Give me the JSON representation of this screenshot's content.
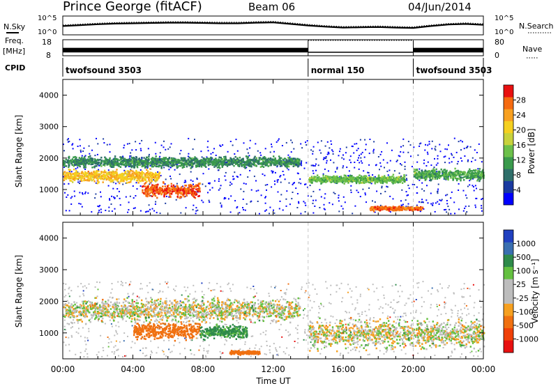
{
  "header": {
    "station": "Prince George (fitACF)",
    "beam": "Beam 06",
    "date": "04/Jun/2014"
  },
  "chart_data": [
    {
      "type": "line",
      "panel": "noise",
      "left_label": "N.Sky",
      "right_label": "N.Search",
      "tick_top": "10^5",
      "tick_bottom": "10^0",
      "log_scale": true,
      "ylim": [
        1,
        100000
      ],
      "x_hours": [
        0,
        1,
        2,
        3,
        4,
        5,
        6,
        7,
        8,
        9,
        10,
        11,
        12,
        13,
        14,
        15,
        16,
        17,
        18,
        19,
        20,
        21,
        22,
        23,
        24
      ],
      "sky_log10": [
        2.4,
        2.7,
        3.0,
        3.2,
        3.3,
        3.4,
        3.5,
        3.5,
        3.4,
        3.3,
        3.3,
        3.5,
        3.6,
        3.1,
        2.6,
        2.2,
        1.9,
        2.0,
        2.1,
        1.9,
        1.8,
        2.4,
        2.9,
        3.1,
        2.8
      ]
    },
    {
      "type": "line",
      "panel": "frequency",
      "left_label_1": "Freq.",
      "left_label_2": "[MHz]",
      "right_label": "Nave",
      "yticks_left": [
        "18",
        "8"
      ],
      "yticks_right": [
        "80",
        "0"
      ],
      "ylim": [
        8,
        18
      ],
      "segments": [
        {
          "start": 0,
          "end": 14,
          "freq_mhz": [
            10.5,
            12.5
          ],
          "nave": 30
        },
        {
          "start": 14,
          "end": 20,
          "freq_mhz": [
            10.5,
            10.5
          ],
          "nave": 80
        },
        {
          "start": 20,
          "end": 24,
          "freq_mhz": [
            10.5,
            12.5
          ],
          "nave": 30
        }
      ]
    },
    {
      "type": "table",
      "panel": "cpid",
      "label": "CPID",
      "modes": [
        {
          "start": 0,
          "end": 14,
          "name": "twofsound 3503"
        },
        {
          "start": 14,
          "end": 20,
          "name": "normal 150"
        },
        {
          "start": 20,
          "end": 24,
          "name": "twofsound 3503"
        }
      ]
    },
    {
      "type": "heatmap",
      "panel": "power",
      "ylabel": "Slant Range [km]",
      "yticks": [
        "1000",
        "2000",
        "3000",
        "4000"
      ],
      "ylim": [
        180,
        4500
      ],
      "colorbar_label": "Power [dB]",
      "colorbar_ticks": [
        "28",
        "24",
        "20",
        "16",
        "12",
        "8",
        "4"
      ],
      "colorbar_range": [
        0,
        32
      ],
      "colors": [
        "#0000ff",
        "#1a3aa0",
        "#2f6f6a",
        "#3a9a4c",
        "#6cc04a",
        "#c8d23c",
        "#f5d020",
        "#f8a020",
        "#f56a10",
        "#e81010"
      ],
      "features": [
        {
          "t0": 0.0,
          "t1": 5.5,
          "r_center": 1450,
          "r_width": 260,
          "db": 22
        },
        {
          "t0": 4.5,
          "t1": 7.8,
          "r_center": 1000,
          "r_width": 300,
          "db": 28
        },
        {
          "t0": 0.0,
          "t1": 13.5,
          "r_center": 1900,
          "r_width": 220,
          "db": 10
        },
        {
          "t0": 14.0,
          "t1": 19.5,
          "r_center": 1350,
          "r_width": 160,
          "db": 14
        },
        {
          "t0": 17.5,
          "t1": 20.5,
          "r_center": 420,
          "r_width": 90,
          "db": 27
        },
        {
          "t0": 20.0,
          "t1": 24.0,
          "r_center": 1500,
          "r_width": 240,
          "db": 12
        }
      ]
    },
    {
      "type": "heatmap",
      "panel": "velocity",
      "ylabel": "Slant Range [km]",
      "yticks": [
        "1000",
        "2000",
        "3000",
        "4000"
      ],
      "ylim": [
        180,
        4500
      ],
      "colorbar_label": "Velocity [m s⁻¹]",
      "colorbar_ticks": [
        "1000",
        "500",
        "100",
        "25",
        "-25",
        "-100",
        "-500",
        "-1000"
      ],
      "colors": [
        "#2040c0",
        "#3a6fb0",
        "#2e8a4a",
        "#64c040",
        "#bdbdbd",
        "#bdbdbd",
        "#f6a020",
        "#f07010",
        "#f04008",
        "#e81010"
      ],
      "features": [
        {
          "t0": 0.0,
          "t1": 13.5,
          "r_center": 1750,
          "r_width": 500,
          "velocity": 0
        },
        {
          "t0": 4.0,
          "t1": 7.8,
          "r_center": 1100,
          "r_width": 350,
          "velocity": -350
        },
        {
          "t0": 7.8,
          "t1": 10.5,
          "r_center": 1050,
          "r_width": 300,
          "velocity": 150
        },
        {
          "t0": 14.0,
          "t1": 24.0,
          "r_center": 1000,
          "r_width": 600,
          "velocity": 0
        },
        {
          "t0": 9.5,
          "t1": 11.2,
          "r_center": 400,
          "r_width": 80,
          "velocity": -250
        }
      ]
    }
  ],
  "xaxis": {
    "ticks": [
      "00:00",
      "04:00",
      "08:00",
      "12:00",
      "16:00",
      "20:00",
      "00:00"
    ],
    "label": "Time UT",
    "xlim_hours": [
      0,
      24
    ]
  }
}
